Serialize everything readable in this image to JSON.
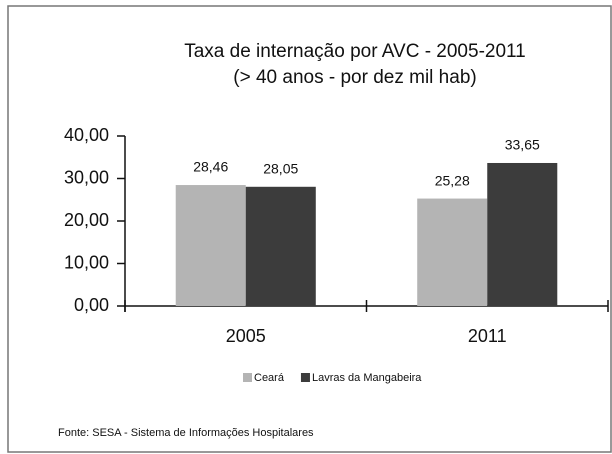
{
  "chart_data": {
    "type": "bar",
    "title": "Taxa de internação por AVC - 2005-2011",
    "subtitle": "(> 40 anos - por dez mil hab)",
    "categories": [
      "2005",
      "2011"
    ],
    "series": [
      {
        "name": "Ceará",
        "color": "#b4b4b4",
        "values": [
          28.46,
          25.28
        ],
        "value_labels": [
          "28,46",
          "25,28"
        ]
      },
      {
        "name": "Lavras da Mangabeira",
        "color": "#3c3c3c",
        "values": [
          28.05,
          33.65
        ],
        "value_labels": [
          "28,05",
          "33,65"
        ]
      }
    ],
    "ylim": [
      0,
      40
    ],
    "yticks": [
      {
        "value": 0,
        "label": "0,00"
      },
      {
        "value": 10,
        "label": "10,00"
      },
      {
        "value": 20,
        "label": "20,00"
      },
      {
        "value": 30,
        "label": "30,00"
      },
      {
        "value": 40,
        "label": "40,00"
      }
    ],
    "source": "Fonte: SESA - Sistema de Informações Hospitalares"
  }
}
